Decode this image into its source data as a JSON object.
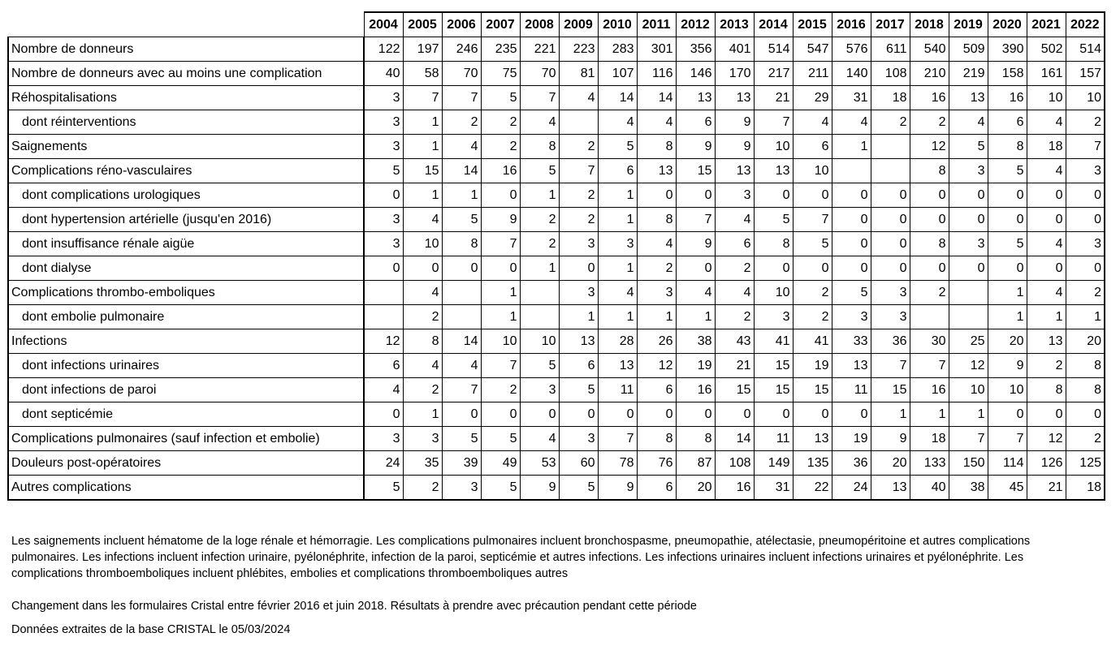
{
  "table": {
    "years": [
      "2004",
      "2005",
      "2006",
      "2007",
      "2008",
      "2009",
      "2010",
      "2011",
      "2012",
      "2013",
      "2014",
      "2015",
      "2016",
      "2017",
      "2018",
      "2019",
      "2020",
      "2021",
      "2022"
    ],
    "rows": [
      {
        "label": "Nombre de donneurs",
        "sub": false,
        "values": [
          "122",
          "197",
          "246",
          "235",
          "221",
          "223",
          "283",
          "301",
          "356",
          "401",
          "514",
          "547",
          "576",
          "611",
          "540",
          "509",
          "390",
          "502",
          "514"
        ]
      },
      {
        "label": "Nombre de donneurs avec au moins une complication",
        "sub": false,
        "values": [
          "40",
          "58",
          "70",
          "75",
          "70",
          "81",
          "107",
          "116",
          "146",
          "170",
          "217",
          "211",
          "140",
          "108",
          "210",
          "219",
          "158",
          "161",
          "157"
        ]
      },
      {
        "label": "Réhospitalisations",
        "sub": false,
        "values": [
          "3",
          "7",
          "7",
          "5",
          "7",
          "4",
          "14",
          "14",
          "13",
          "13",
          "21",
          "29",
          "31",
          "18",
          "16",
          "13",
          "16",
          "10",
          "10"
        ]
      },
      {
        "label": "dont réinterventions",
        "sub": true,
        "values": [
          "3",
          "1",
          "2",
          "2",
          "4",
          "",
          "4",
          "4",
          "6",
          "9",
          "7",
          "4",
          "4",
          "2",
          "2",
          "4",
          "6",
          "4",
          "2"
        ]
      },
      {
        "label": "Saignements",
        "sub": false,
        "values": [
          "3",
          "1",
          "4",
          "2",
          "8",
          "2",
          "5",
          "8",
          "9",
          "9",
          "10",
          "6",
          "1",
          "",
          "12",
          "5",
          "8",
          "18",
          "7"
        ]
      },
      {
        "label": "Complications réno-vasculaires",
        "sub": false,
        "values": [
          "5",
          "15",
          "14",
          "16",
          "5",
          "7",
          "6",
          "13",
          "15",
          "13",
          "13",
          "10",
          "",
          "",
          "8",
          "3",
          "5",
          "4",
          "3"
        ]
      },
      {
        "label": "dont complications urologiques",
        "sub": true,
        "values": [
          "0",
          "1",
          "1",
          "0",
          "1",
          "2",
          "1",
          "0",
          "0",
          "3",
          "0",
          "0",
          "0",
          "0",
          "0",
          "0",
          "0",
          "0",
          "0"
        ]
      },
      {
        "label": "dont hypertension artérielle (jusqu'en 2016)",
        "sub": true,
        "values": [
          "3",
          "4",
          "5",
          "9",
          "2",
          "2",
          "1",
          "8",
          "7",
          "4",
          "5",
          "7",
          "0",
          "0",
          "0",
          "0",
          "0",
          "0",
          "0"
        ]
      },
      {
        "label": "dont insuffisance rénale aigüe",
        "sub": true,
        "values": [
          "3",
          "10",
          "8",
          "7",
          "2",
          "3",
          "3",
          "4",
          "9",
          "6",
          "8",
          "5",
          "0",
          "0",
          "8",
          "3",
          "5",
          "4",
          "3"
        ]
      },
      {
        "label": "dont dialyse",
        "sub": true,
        "values": [
          "0",
          "0",
          "0",
          "0",
          "1",
          "0",
          "1",
          "2",
          "0",
          "2",
          "0",
          "0",
          "0",
          "0",
          "0",
          "0",
          "0",
          "0",
          "0"
        ]
      },
      {
        "label": "Complications thrombo-emboliques",
        "sub": false,
        "values": [
          "",
          "4",
          "",
          "1",
          "",
          "3",
          "4",
          "3",
          "4",
          "4",
          "10",
          "2",
          "5",
          "3",
          "2",
          "",
          "1",
          "4",
          "2"
        ]
      },
      {
        "label": "dont embolie pulmonaire",
        "sub": true,
        "values": [
          "",
          "2",
          "",
          "1",
          "",
          "1",
          "1",
          "1",
          "1",
          "2",
          "3",
          "2",
          "3",
          "3",
          "",
          "",
          "1",
          "1",
          "1"
        ]
      },
      {
        "label": "Infections",
        "sub": false,
        "values": [
          "12",
          "8",
          "14",
          "10",
          "10",
          "13",
          "28",
          "26",
          "38",
          "43",
          "41",
          "41",
          "33",
          "36",
          "30",
          "25",
          "20",
          "13",
          "20"
        ]
      },
      {
        "label": "dont infections urinaires",
        "sub": true,
        "values": [
          "6",
          "4",
          "4",
          "7",
          "5",
          "6",
          "13",
          "12",
          "19",
          "21",
          "15",
          "19",
          "13",
          "7",
          "7",
          "12",
          "9",
          "2",
          "8"
        ]
      },
      {
        "label": "dont infections de paroi",
        "sub": true,
        "values": [
          "4",
          "2",
          "7",
          "2",
          "3",
          "5",
          "11",
          "6",
          "16",
          "15",
          "15",
          "15",
          "11",
          "15",
          "16",
          "10",
          "10",
          "8",
          "8"
        ]
      },
      {
        "label": "dont septicémie",
        "sub": true,
        "values": [
          "0",
          "1",
          "0",
          "0",
          "0",
          "0",
          "0",
          "0",
          "0",
          "0",
          "0",
          "0",
          "0",
          "1",
          "1",
          "1",
          "0",
          "0",
          "0"
        ]
      },
      {
        "label": "Complications pulmonaires (sauf infection et embolie)",
        "sub": false,
        "values": [
          "3",
          "3",
          "5",
          "5",
          "4",
          "3",
          "7",
          "8",
          "8",
          "14",
          "11",
          "13",
          "19",
          "9",
          "18",
          "7",
          "7",
          "12",
          "2"
        ]
      },
      {
        "label": "Douleurs post-opératoires",
        "sub": false,
        "values": [
          "24",
          "35",
          "39",
          "49",
          "53",
          "60",
          "78",
          "76",
          "87",
          "108",
          "149",
          "135",
          "36",
          "20",
          "133",
          "150",
          "114",
          "126",
          "125"
        ]
      },
      {
        "label": "Autres complications",
        "sub": false,
        "values": [
          "5",
          "2",
          "3",
          "5",
          "9",
          "5",
          "9",
          "6",
          "20",
          "16",
          "31",
          "22",
          "24",
          "13",
          "40",
          "38",
          "45",
          "21",
          "18"
        ]
      }
    ]
  },
  "notes": {
    "definitions": "Les saignements incluent hématome de la loge rénale et hémorragie. Les complications pulmonaires incluent bronchospasme, pneumopathie, atélectasie, pneumopéritoine et autres complications pulmonaires. Les infections incluent infection urinaire, pyélonéphrite, infection de la paroi, septicémie et autres infections. Les infections urinaires incluent infections urinaires et pyélonéphrite. Les complications thromboemboliques incluent phlébites, embolies et complications thromboemboliques autres",
    "change": "Changement dans les formulaires Cristal entre février 2016 et juin 2018. Résultats à prendre avec précaution pendant cette période",
    "source": "Données extraites de la base CRISTAL le 05/03/2024"
  }
}
